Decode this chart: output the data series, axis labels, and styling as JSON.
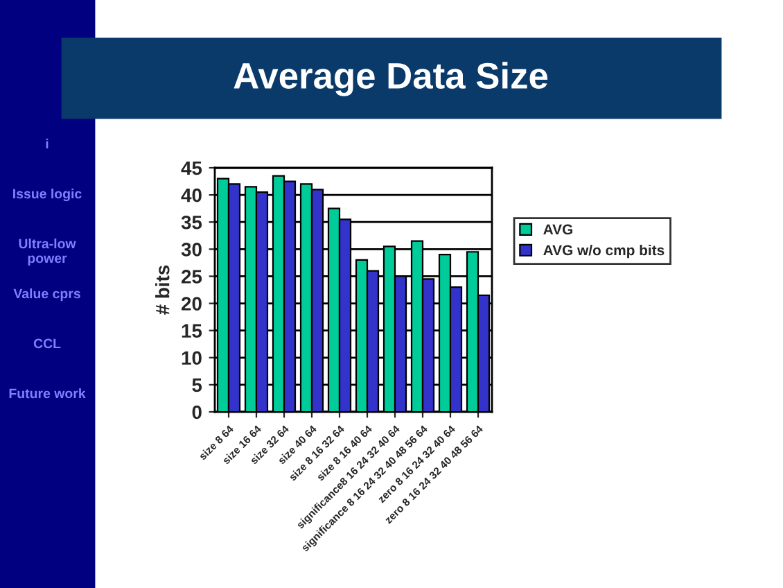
{
  "chart_data": {
    "type": "bar",
    "title": "Average Data Size",
    "ylabel": "# bits",
    "categories": [
      "size 8 64",
      "size 16 64",
      "size 32 64",
      "size 40 64",
      "size 8 16 32 64",
      "size 8 16 40 64",
      "significance8 16 24 32 40 64",
      "significance 8 16 24 32 40 48 56 64",
      "zero 8 16 24 32 40 64",
      "zero 8 16 24 32 40 48 56 64"
    ],
    "series": [
      {
        "name": "AVG",
        "color": "#00cc99",
        "values": [
          43,
          41.5,
          43.5,
          42,
          37.5,
          28,
          30.5,
          31.5,
          29,
          29.5
        ]
      },
      {
        "name": "AVG w/o cmp bits",
        "color": "#3333cc",
        "values": [
          42,
          40.5,
          42.5,
          41,
          35.5,
          26,
          25,
          24.5,
          23,
          21.5
        ]
      }
    ],
    "ylim": [
      0,
      45
    ],
    "yticks": [
      0,
      5,
      10,
      15,
      20,
      25,
      30,
      35,
      40,
      45
    ],
    "grid": "y",
    "legend": "right",
    "annotations": [
      "i",
      "Issue logic",
      "Ultra-low power",
      "Value cprs",
      "CCL",
      "Future work"
    ]
  }
}
